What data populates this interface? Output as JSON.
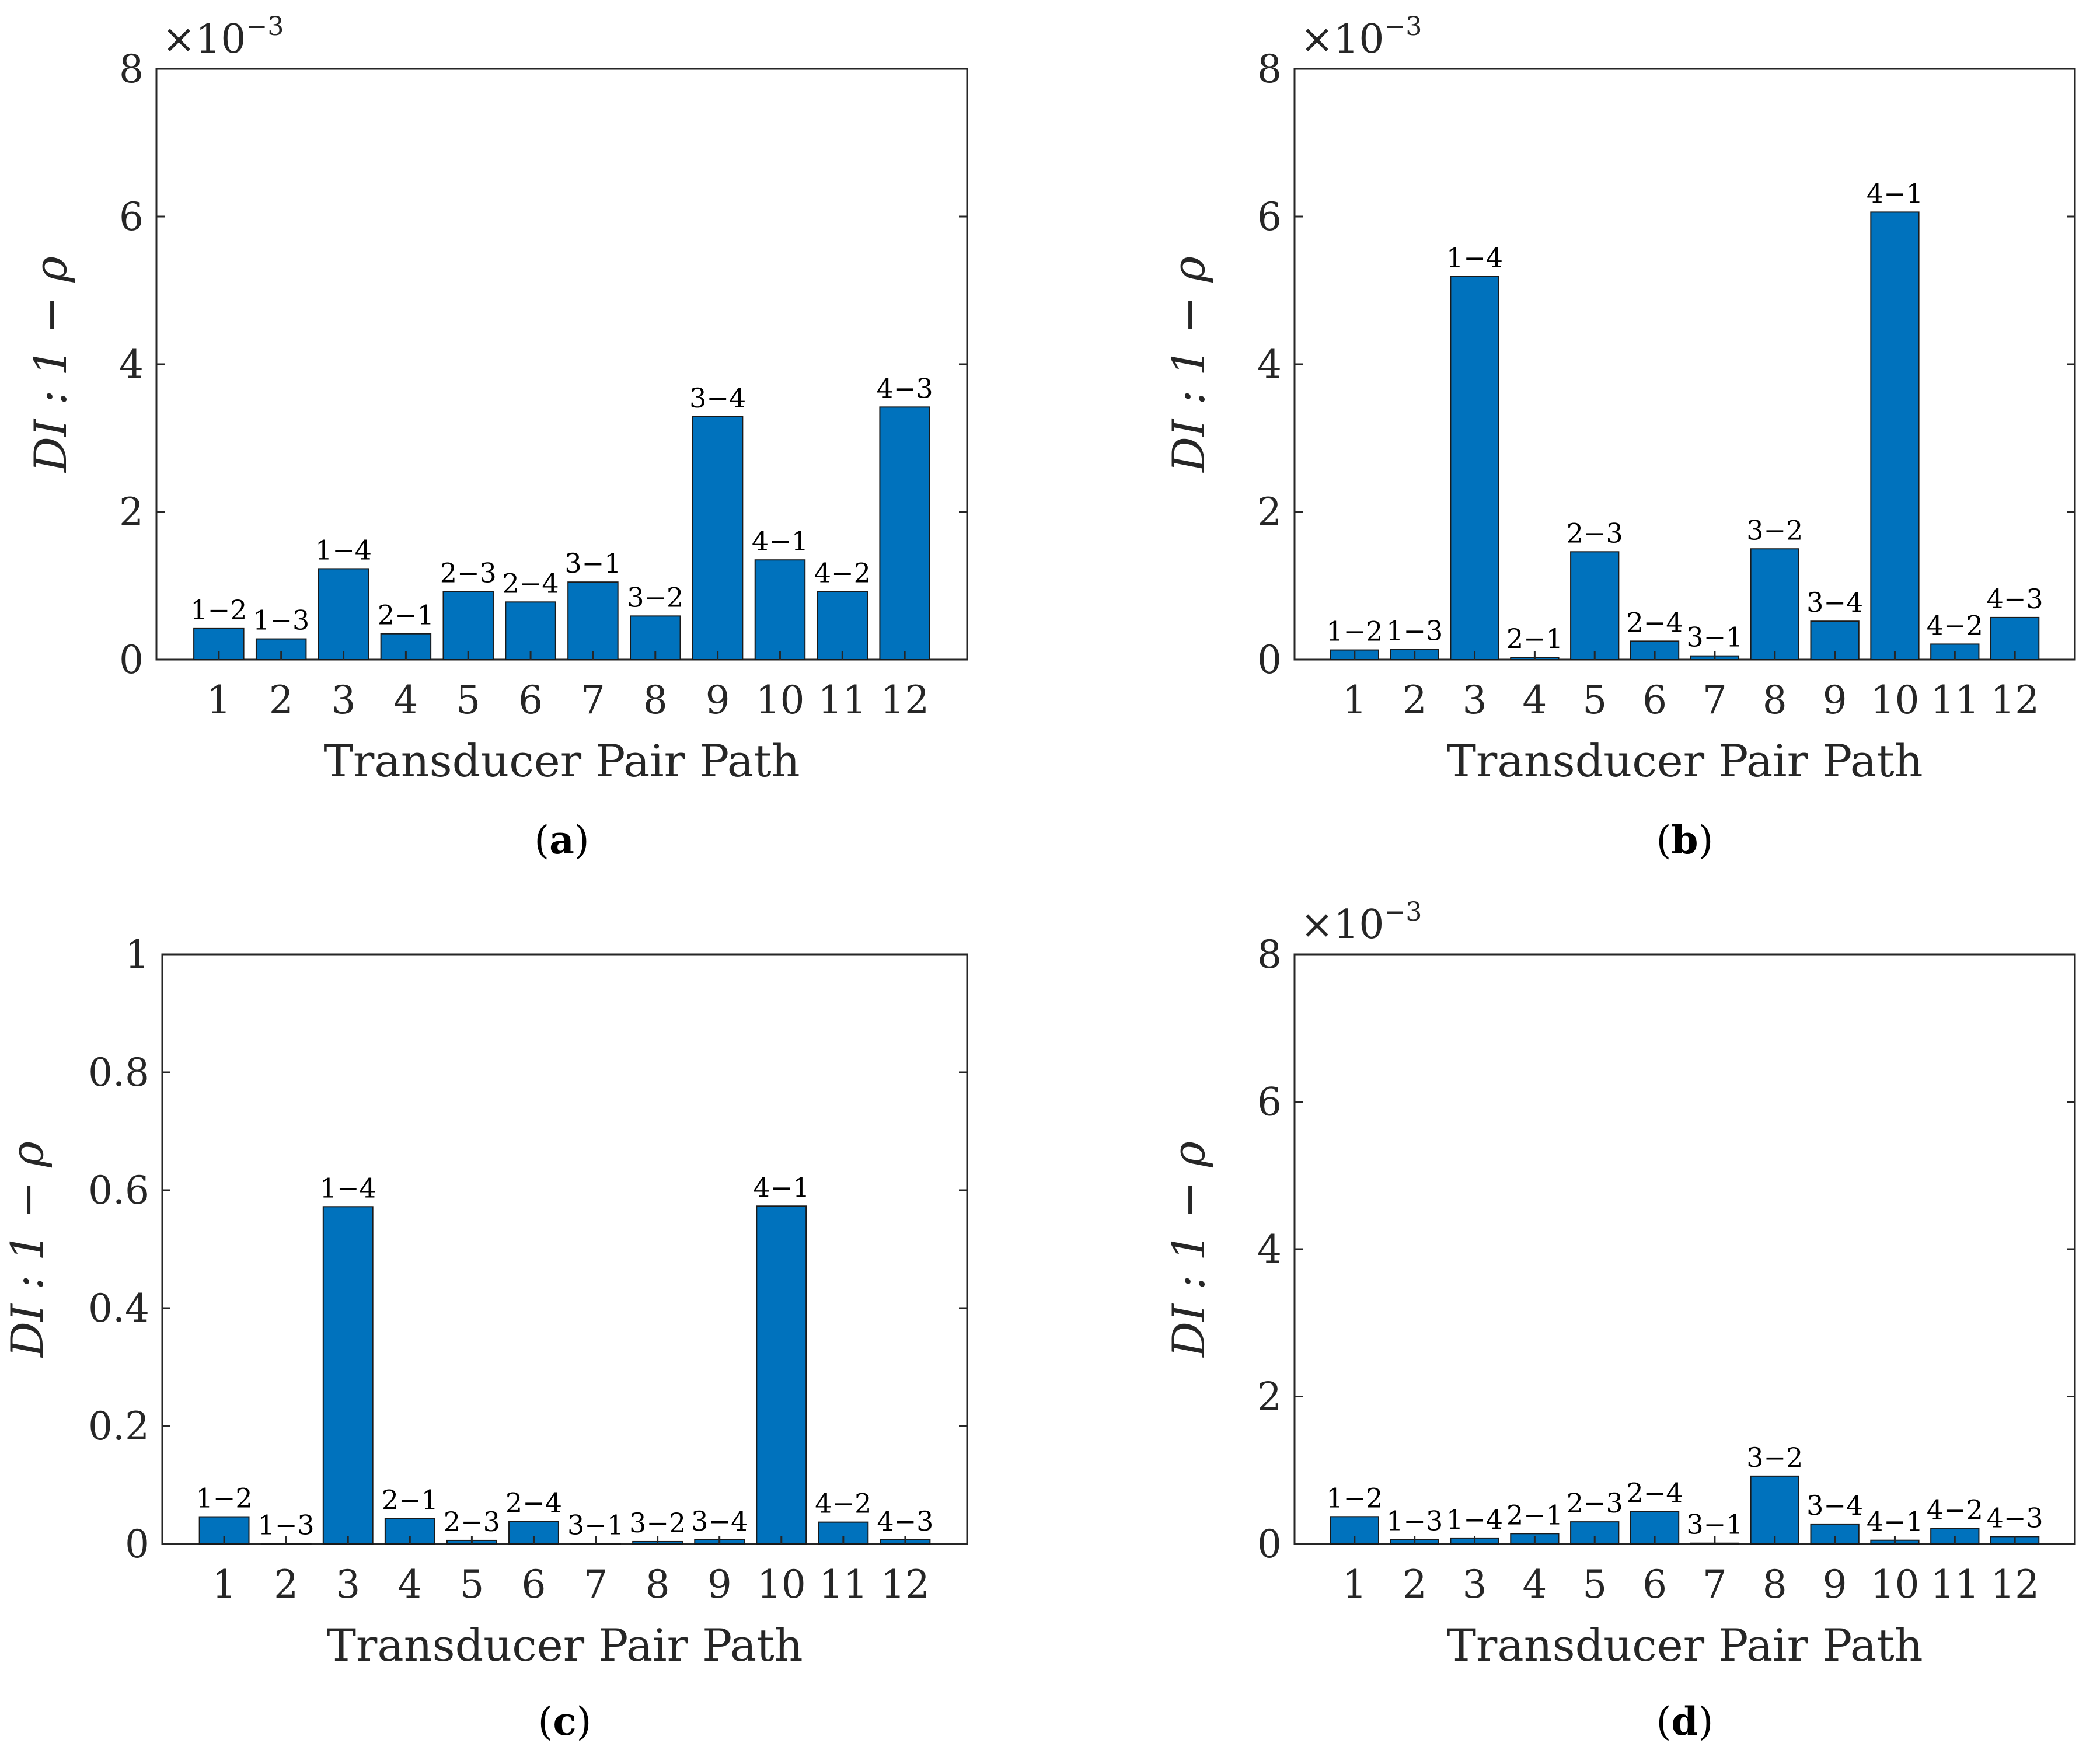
{
  "colors": {
    "bar": "#0072BD",
    "bar_edge": "#1a1a1a",
    "axis": "#262626"
  },
  "chart_data": [
    {
      "panel": "a",
      "type": "bar",
      "caption": {
        "open": "(",
        "letter": "a",
        "close": ")"
      },
      "categories": [
        "1",
        "2",
        "3",
        "4",
        "5",
        "6",
        "7",
        "8",
        "9",
        "10",
        "11",
        "12"
      ],
      "pair_labels": [
        "1−2",
        "1−3",
        "1−4",
        "2−1",
        "2−3",
        "2−4",
        "3−1",
        "3−2",
        "3−4",
        "4−1",
        "4−2",
        "4−3"
      ],
      "values": [
        0.00042,
        0.00028,
        0.00123,
        0.00035,
        0.00092,
        0.00078,
        0.00105,
        0.00059,
        0.00329,
        0.00135,
        0.00092,
        0.00342
      ],
      "ylim": [
        0,
        0.008
      ],
      "yticks": [
        0,
        2,
        4,
        6,
        8
      ],
      "multiplier": {
        "base": "×10",
        "exponent": "−3"
      },
      "xlabel": "Transducer Pair Path",
      "ylabel": "DI : 1 − ρ"
    },
    {
      "panel": "b",
      "type": "bar",
      "caption": {
        "open": "(",
        "letter": "b",
        "close": ")"
      },
      "categories": [
        "1",
        "2",
        "3",
        "4",
        "5",
        "6",
        "7",
        "8",
        "9",
        "10",
        "11",
        "12"
      ],
      "pair_labels": [
        "1−2",
        "1−3",
        "1−4",
        "2−1",
        "2−3",
        "2−4",
        "3−1",
        "3−2",
        "3−4",
        "4−1",
        "4−2",
        "4−3"
      ],
      "values": [
        0.00013,
        0.00014,
        0.00519,
        3e-05,
        0.00146,
        0.00025,
        5e-05,
        0.0015,
        0.00052,
        0.00606,
        0.00021,
        0.00057
      ],
      "ylim": [
        0,
        0.008
      ],
      "yticks": [
        0,
        2,
        4,
        6,
        8
      ],
      "multiplier": {
        "base": "×10",
        "exponent": "−3"
      },
      "xlabel": "Transducer Pair Path",
      "ylabel": "DI : 1 − ρ"
    },
    {
      "panel": "c",
      "type": "bar",
      "caption": {
        "open": "(",
        "letter": "c",
        "close": ")"
      },
      "categories": [
        "1",
        "2",
        "3",
        "4",
        "5",
        "6",
        "7",
        "8",
        "9",
        "10",
        "11",
        "12"
      ],
      "pair_labels": [
        "1−2",
        "1−3",
        "1−4",
        "2−1",
        "2−3",
        "2−4",
        "3−1",
        "3−2",
        "3−4",
        "4−1",
        "4−2",
        "4−3"
      ],
      "values": [
        0.046,
        0.0003,
        0.572,
        0.043,
        0.006,
        0.038,
        0.0003,
        0.004,
        0.007,
        0.573,
        0.037,
        0.007
      ],
      "ylim": [
        0,
        1
      ],
      "yticks": [
        "0",
        "0.2",
        "0.4",
        "0.6",
        "0.8",
        "1"
      ],
      "xlabel": "Transducer Pair Path",
      "ylabel": "DI : 1 − ρ"
    },
    {
      "panel": "d",
      "type": "bar",
      "caption": {
        "open": "(",
        "letter": "d",
        "close": ")"
      },
      "categories": [
        "1",
        "2",
        "3",
        "4",
        "5",
        "6",
        "7",
        "8",
        "9",
        "10",
        "11",
        "12"
      ],
      "pair_labels": [
        "1−2",
        "1−3",
        "1−4",
        "2−1",
        "2−3",
        "2−4",
        "3−1",
        "3−2",
        "3−4",
        "4−1",
        "4−2",
        "4−3"
      ],
      "values": [
        0.00037,
        6e-05,
        8e-05,
        0.00014,
        0.0003,
        0.00044,
        1e-05,
        0.00092,
        0.00027,
        5e-05,
        0.00021,
        0.0001
      ],
      "ylim": [
        0,
        0.008
      ],
      "yticks": [
        0,
        2,
        4,
        6,
        8
      ],
      "multiplier": {
        "base": "×10",
        "exponent": "−3"
      },
      "xlabel": "Transducer Pair Path",
      "ylabel": "DI : 1 − ρ"
    }
  ]
}
